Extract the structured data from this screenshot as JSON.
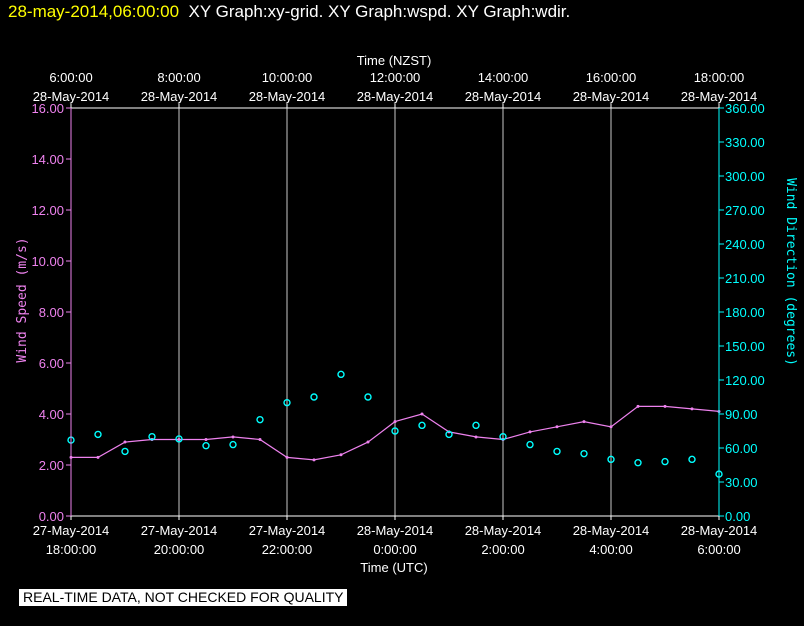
{
  "header": {
    "stamp": "28-may-2014,06:00:00",
    "titles": "XY Graph:xy-grid.  XY Graph:wspd.  XY Graph:wdir."
  },
  "notice": "REAL-TIME DATA, NOT CHECKED FOR QUALITY",
  "colors": {
    "background": "#000000",
    "frame": "#ffffff",
    "wind_speed": "#ee82ee",
    "wind_direction": "#00ffff",
    "stamp": "#ffff00"
  },
  "chart_data": {
    "type": "line",
    "top_axis_title": "Time (NZST)",
    "bottom_axis_title": "Time (UTC)",
    "top_ticks": [
      {
        "time": "6:00:00",
        "date": "28-May-2014"
      },
      {
        "time": "8:00:00",
        "date": "28-May-2014"
      },
      {
        "time": "10:00:00",
        "date": "28-May-2014"
      },
      {
        "time": "12:00:00",
        "date": "28-May-2014"
      },
      {
        "time": "14:00:00",
        "date": "28-May-2014"
      },
      {
        "time": "16:00:00",
        "date": "28-May-2014"
      },
      {
        "time": "18:00:00",
        "date": "28-May-2014"
      }
    ],
    "bottom_ticks": [
      {
        "date": "27-May-2014",
        "time": "18:00:00"
      },
      {
        "date": "27-May-2014",
        "time": "20:00:00"
      },
      {
        "date": "27-May-2014",
        "time": "22:00:00"
      },
      {
        "date": "28-May-2014",
        "time": "0:00:00"
      },
      {
        "date": "28-May-2014",
        "time": "2:00:00"
      },
      {
        "date": "28-May-2014",
        "time": "4:00:00"
      },
      {
        "date": "28-May-2014",
        "time": "6:00:00"
      }
    ],
    "x_range_utc": [
      "2014-05-27 18:00",
      "2014-05-28 06:00"
    ],
    "left_axis": {
      "label": "Wind Speed (m/s)",
      "range": [
        0,
        16
      ],
      "ticks": [
        "0.00",
        "2.00",
        "4.00",
        "6.00",
        "8.00",
        "10.00",
        "12.00",
        "14.00",
        "16.00"
      ]
    },
    "right_axis": {
      "label": "Wind Direction (degrees)",
      "range": [
        0,
        360
      ],
      "ticks": [
        "0.00",
        "30.00",
        "60.00",
        "90.00",
        "120.00",
        "150.00",
        "180.00",
        "210.00",
        "240.00",
        "270.00",
        "300.00",
        "330.00",
        "360.00"
      ]
    },
    "vertical_grid": true,
    "series": [
      {
        "name": "wspd",
        "style": "line",
        "axis": "left",
        "x_utc": [
          "2014-05-27 18:00",
          "2014-05-27 18:30",
          "2014-05-27 19:00",
          "2014-05-27 19:30",
          "2014-05-27 20:00",
          "2014-05-27 20:30",
          "2014-05-27 21:00",
          "2014-05-27 21:30",
          "2014-05-27 22:00",
          "2014-05-27 22:30",
          "2014-05-27 23:00",
          "2014-05-27 23:30",
          "2014-05-28 00:00",
          "2014-05-28 00:30",
          "2014-05-28 01:00",
          "2014-05-28 01:30",
          "2014-05-28 02:00",
          "2014-05-28 02:30",
          "2014-05-28 03:00",
          "2014-05-28 03:30",
          "2014-05-28 04:00",
          "2014-05-28 04:30",
          "2014-05-28 05:00",
          "2014-05-28 05:30",
          "2014-05-28 06:00"
        ],
        "values": [
          2.3,
          2.3,
          2.9,
          3.0,
          3.0,
          3.0,
          3.1,
          3.0,
          2.3,
          2.2,
          2.4,
          2.9,
          3.7,
          4.0,
          3.3,
          3.1,
          3.0,
          3.3,
          3.5,
          3.7,
          3.5,
          4.3,
          4.3,
          4.2,
          4.1
        ]
      },
      {
        "name": "wdir",
        "style": "markers",
        "axis": "right",
        "x_utc": [
          "2014-05-27 18:00",
          "2014-05-27 18:30",
          "2014-05-27 19:00",
          "2014-05-27 19:30",
          "2014-05-27 20:00",
          "2014-05-27 20:30",
          "2014-05-27 21:00",
          "2014-05-27 21:30",
          "2014-05-27 22:00",
          "2014-05-27 22:30",
          "2014-05-27 23:00",
          "2014-05-27 23:30",
          "2014-05-28 00:00",
          "2014-05-28 00:30",
          "2014-05-28 01:00",
          "2014-05-28 01:30",
          "2014-05-28 02:00",
          "2014-05-28 02:30",
          "2014-05-28 03:00",
          "2014-05-28 03:30",
          "2014-05-28 04:00",
          "2014-05-28 04:30",
          "2014-05-28 05:00",
          "2014-05-28 05:30",
          "2014-05-28 06:00"
        ],
        "values": [
          67,
          72,
          57,
          70,
          68,
          62,
          63,
          85,
          100,
          105,
          125,
          105,
          75,
          80,
          72,
          80,
          70,
          63,
          57,
          55,
          50,
          47,
          48,
          50,
          37
        ]
      }
    ]
  }
}
